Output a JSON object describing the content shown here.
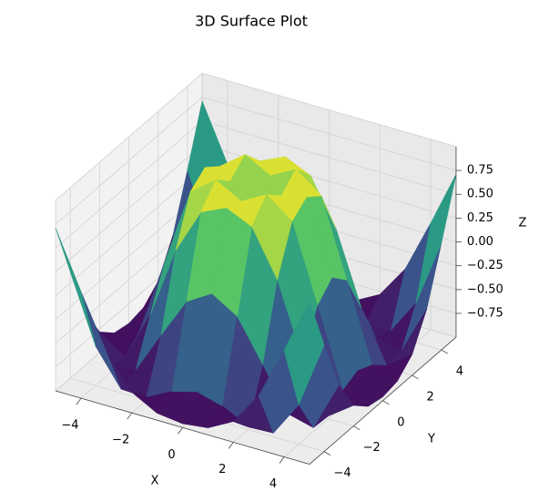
{
  "chart_data": {
    "type": "surface",
    "title": "3D Surface Plot",
    "xlabel": "X",
    "ylabel": "Y",
    "zlabel": "Z",
    "colormap": "viridis",
    "x": [
      -5,
      -4,
      -3,
      -2,
      -1,
      0,
      1,
      2,
      3,
      4,
      5
    ],
    "y": [
      -5,
      -4,
      -3,
      -2,
      -1,
      0,
      1,
      2,
      3,
      4,
      5
    ],
    "z": [
      [
        0.709,
        0.12,
        -0.437,
        -0.782,
        -0.926,
        -0.959,
        -0.926,
        -0.782,
        -0.437,
        0.12,
        0.709
      ],
      [
        0.12,
        -0.586,
        -0.959,
        -0.971,
        -0.831,
        -0.757,
        -0.831,
        -0.971,
        -0.959,
        -0.586,
        0.12
      ],
      [
        -0.437,
        -0.959,
        -0.891,
        -0.448,
        -0.021,
        0.141,
        -0.021,
        -0.448,
        -0.891,
        -0.959,
        -0.437
      ],
      [
        -0.782,
        -0.971,
        -0.448,
        0.308,
        0.787,
        0.909,
        0.787,
        0.308,
        -0.448,
        -0.971,
        -0.782
      ],
      [
        -0.926,
        -0.831,
        -0.021,
        0.787,
        0.988,
        0.841,
        0.988,
        0.787,
        -0.021,
        -0.831,
        -0.926
      ],
      [
        -0.959,
        -0.757,
        0.141,
        0.909,
        0.841,
        0,
        0.841,
        0.909,
        0.141,
        -0.757,
        -0.959
      ],
      [
        -0.926,
        -0.831,
        -0.021,
        0.787,
        0.988,
        0.841,
        0.988,
        0.787,
        -0.021,
        -0.831,
        -0.926
      ],
      [
        -0.782,
        -0.971,
        -0.448,
        0.308,
        0.787,
        0.909,
        0.787,
        0.308,
        -0.448,
        -0.971,
        -0.782
      ],
      [
        -0.437,
        -0.959,
        -0.891,
        -0.448,
        -0.021,
        0.141,
        -0.021,
        -0.448,
        -0.891,
        -0.959,
        -0.437
      ],
      [
        0.12,
        -0.586,
        -0.959,
        -0.971,
        -0.831,
        -0.757,
        -0.831,
        -0.971,
        -0.959,
        -0.586,
        0.12
      ],
      [
        0.709,
        0.12,
        -0.437,
        -0.782,
        -0.926,
        -0.959,
        -0.926,
        -0.782,
        -0.437,
        0.12,
        0.709
      ]
    ],
    "xlim": [
      -5,
      5
    ],
    "ylim": [
      -5,
      5
    ],
    "zlim": [
      -1,
      1
    ],
    "xticks": [
      {
        "value": -4,
        "label": "−4"
      },
      {
        "value": -2,
        "label": "−2"
      },
      0,
      2,
      4
    ],
    "yticks": [
      {
        "value": -4,
        "label": "−4"
      },
      {
        "value": -2,
        "label": "−2"
      },
      0,
      2,
      4
    ],
    "zticks": [
      {
        "value": -0.75,
        "label": "−0.75"
      },
      {
        "value": -0.5,
        "label": "−0.50"
      },
      {
        "value": -0.25,
        "label": "−0.25"
      },
      {
        "value": 0,
        "label": "0.00"
      },
      0.25,
      {
        "value": 0.5,
        "label": "0.50"
      },
      0.75
    ],
    "grid": true
  }
}
